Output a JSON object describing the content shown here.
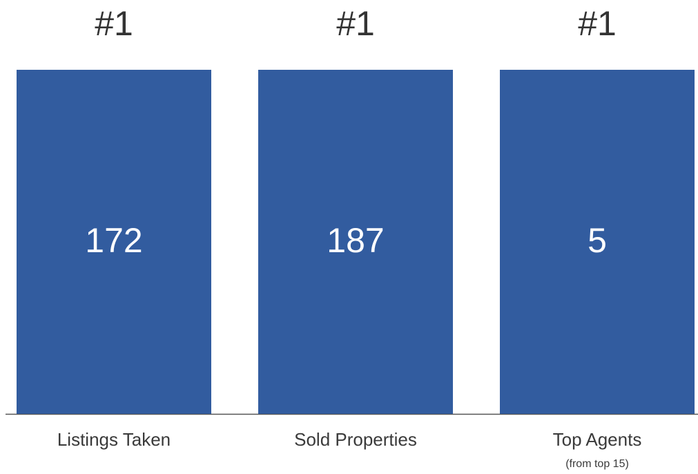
{
  "items": [
    {
      "rank": "#1",
      "value": 172,
      "label": "Listings Taken"
    },
    {
      "rank": "#1",
      "value": 187,
      "label": "Sold Properties"
    },
    {
      "rank": "#1",
      "value": 5,
      "label": "Top Agents",
      "note": "(from top 15)"
    }
  ]
}
